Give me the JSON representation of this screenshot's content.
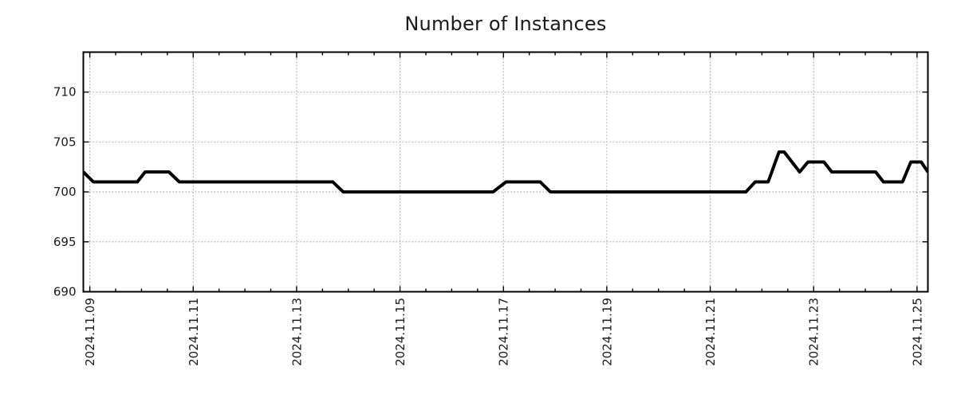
{
  "title": "Number of Instances",
  "chart_data": {
    "type": "line",
    "title": "Number of Instances",
    "xlabel": "",
    "ylabel": "",
    "x_unit": "days since 2024.11.09 00:00",
    "xlim": [
      -0.125,
      16.21
    ],
    "ylim": [
      690,
      714
    ],
    "y_ticks": [
      690,
      695,
      700,
      705,
      710
    ],
    "x_ticks": [
      {
        "d": 0,
        "label": "2024.11.09"
      },
      {
        "d": 2,
        "label": "2024.11.11"
      },
      {
        "d": 4,
        "label": "2024.11.13"
      },
      {
        "d": 6,
        "label": "2024.11.15"
      },
      {
        "d": 8,
        "label": "2024.11.17"
      },
      {
        "d": 10,
        "label": "2024.11.19"
      },
      {
        "d": 12,
        "label": "2024.11.21"
      },
      {
        "d": 14,
        "label": "2024.11.23"
      },
      {
        "d": 16,
        "label": "2024.11.25"
      }
    ],
    "minor_tick_step_days": 0.5,
    "grid": {
      "show": true,
      "style": "dotted",
      "which": "major",
      "axes": "both"
    },
    "legend": null,
    "series": [
      {
        "name": "instances",
        "points_days_value": [
          [
            -0.125,
            702
          ],
          [
            0.07,
            701
          ],
          [
            0.92,
            701
          ],
          [
            1.07,
            702
          ],
          [
            1.53,
            702
          ],
          [
            1.73,
            701
          ],
          [
            4.7,
            701
          ],
          [
            4.9,
            700
          ],
          [
            7.8,
            700
          ],
          [
            8.05,
            701
          ],
          [
            8.71,
            701
          ],
          [
            8.91,
            700
          ],
          [
            12.69,
            700
          ],
          [
            12.87,
            701
          ],
          [
            13.12,
            701
          ],
          [
            13.33,
            704
          ],
          [
            13.43,
            704
          ],
          [
            13.73,
            702
          ],
          [
            13.89,
            703
          ],
          [
            14.2,
            703
          ],
          [
            14.35,
            702
          ],
          [
            15.2,
            702
          ],
          [
            15.35,
            701
          ],
          [
            15.72,
            701
          ],
          [
            15.88,
            703
          ],
          [
            16.08,
            703
          ],
          [
            16.21,
            702
          ]
        ]
      }
    ],
    "colors": {
      "series": "#000000",
      "grid": "#aaaaaa",
      "spine": "#000000",
      "tick": "#000000",
      "label": "#1a1a1a",
      "background": "#ffffff"
    }
  }
}
